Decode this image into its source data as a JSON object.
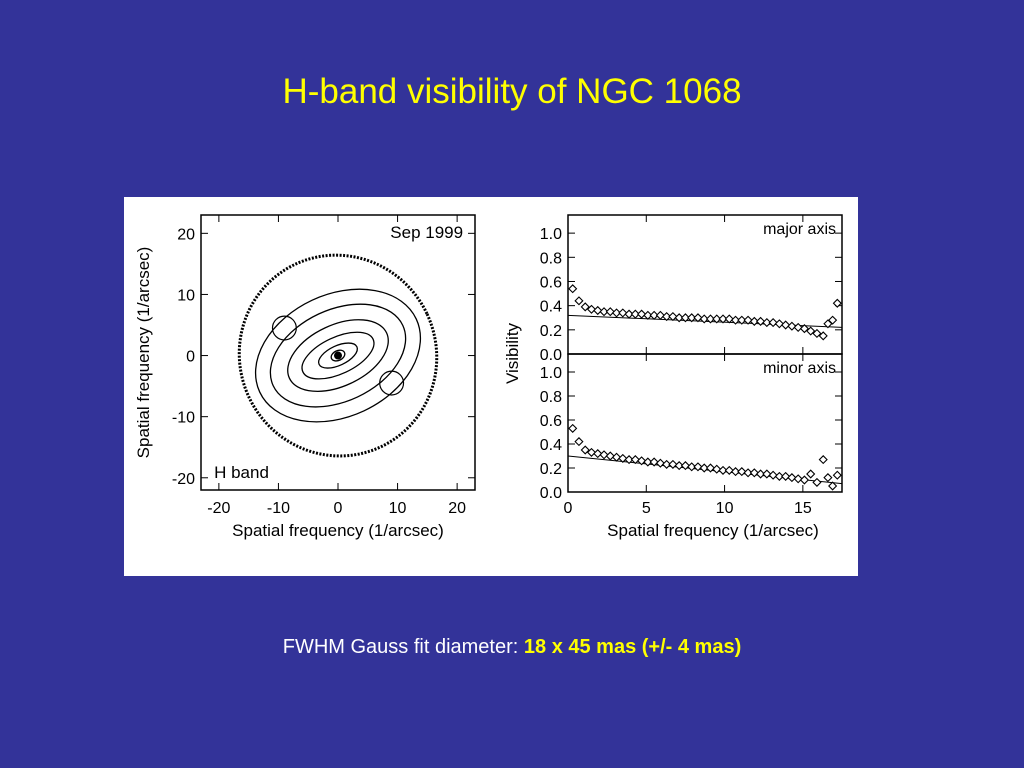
{
  "slide": {
    "title": "H-band visibility of NGC 1068",
    "caption_prefix": "FWHM Gauss fit diameter: ",
    "caption_value": "18 x 45 mas (+/- 4 mas)",
    "background_color": "#333399",
    "title_color": "#ffff00",
    "highlight_color": "#ffff00"
  },
  "chart_data": [
    {
      "type": "contour",
      "annotation_top": "Sep 1999",
      "annotation_bottom": "H band",
      "xlabel": "Spatial frequency (1/arcsec)",
      "ylabel": "Spatial frequency (1/arcsec)",
      "xlim": [
        -23,
        23
      ],
      "ylim": [
        -22,
        23
      ],
      "xticks": [
        "-20",
        "-10",
        "0",
        "10",
        "20"
      ],
      "yticks": [
        "20",
        "10",
        "0",
        "-10",
        "-20"
      ],
      "xtick_values": [
        -20,
        -10,
        0,
        10,
        20
      ],
      "ytick_values": [
        20,
        10,
        0,
        -10,
        -20
      ],
      "support_radius": 17,
      "contour_levels": [
        {
          "semi_major": 16.5,
          "semi_minor": 16.5
        },
        {
          "semi_major": 14.5,
          "semi_minor": 10.0
        },
        {
          "semi_major": 12.0,
          "semi_minor": 7.5
        },
        {
          "semi_major": 9.0,
          "semi_minor": 5.0
        },
        {
          "semi_major": 6.5,
          "semi_minor": 3.0
        },
        {
          "semi_major": 3.5,
          "semi_minor": 1.6
        },
        {
          "semi_major": 1.2,
          "semi_minor": 0.8
        }
      ],
      "position_angle_deg": -25,
      "side_islands": [
        {
          "u": -9,
          "v": 4.5,
          "r": 0.8
        },
        {
          "u": 9,
          "v": -4.5,
          "r": 0.8
        }
      ],
      "center_peak": {
        "u": 0,
        "v": 0
      }
    },
    {
      "type": "scatter+line",
      "ylabel": "Visibility",
      "panels": [
        {
          "label": "major axis",
          "xlim": [
            0,
            17.5
          ],
          "ylim": [
            0,
            1.15
          ],
          "yticks": [
            "0.0",
            "0.2",
            "0.4",
            "0.6",
            "0.8",
            "1.0"
          ],
          "ytick_values": [
            0,
            0.2,
            0.4,
            0.6,
            0.8,
            1.0
          ],
          "x": [
            0.3,
            0.7,
            1.1,
            1.5,
            1.9,
            2.3,
            2.7,
            3.1,
            3.5,
            3.9,
            4.3,
            4.7,
            5.1,
            5.5,
            5.9,
            6.3,
            6.7,
            7.1,
            7.5,
            7.9,
            8.3,
            8.7,
            9.1,
            9.5,
            9.9,
            10.3,
            10.7,
            11.1,
            11.5,
            11.9,
            12.3,
            12.7,
            13.1,
            13.5,
            13.9,
            14.3,
            14.7,
            15.1,
            15.5,
            15.9,
            16.3,
            16.6,
            16.9,
            17.2
          ],
          "y": [
            0.54,
            0.44,
            0.39,
            0.37,
            0.36,
            0.35,
            0.35,
            0.34,
            0.34,
            0.33,
            0.33,
            0.33,
            0.32,
            0.32,
            0.32,
            0.31,
            0.31,
            0.3,
            0.3,
            0.3,
            0.3,
            0.29,
            0.29,
            0.29,
            0.29,
            0.29,
            0.28,
            0.28,
            0.28,
            0.27,
            0.27,
            0.26,
            0.26,
            0.25,
            0.24,
            0.23,
            0.22,
            0.21,
            0.19,
            0.17,
            0.15,
            0.25,
            0.28,
            0.42
          ],
          "fit": {
            "x": [
              0,
              17.5
            ],
            "y": [
              0.32,
              0.22
            ]
          }
        },
        {
          "label": "minor axis",
          "xlim": [
            0,
            17.5
          ],
          "ylim": [
            0,
            1.15
          ],
          "yticks": [
            "0.0",
            "0.2",
            "0.4",
            "0.6",
            "0.8",
            "1.0"
          ],
          "ytick_values": [
            0,
            0.2,
            0.4,
            0.6,
            0.8,
            1.0
          ],
          "xticks": [
            "0",
            "5",
            "10",
            "15"
          ],
          "xtick_values": [
            0,
            5,
            10,
            15
          ],
          "xlabel": "Spatial frequency (1/arcsec)",
          "x": [
            0.3,
            0.7,
            1.1,
            1.5,
            1.9,
            2.3,
            2.7,
            3.1,
            3.5,
            3.9,
            4.3,
            4.7,
            5.1,
            5.5,
            5.9,
            6.3,
            6.7,
            7.1,
            7.5,
            7.9,
            8.3,
            8.7,
            9.1,
            9.5,
            9.9,
            10.3,
            10.7,
            11.1,
            11.5,
            11.9,
            12.3,
            12.7,
            13.1,
            13.5,
            13.9,
            14.3,
            14.7,
            15.1,
            15.5,
            15.9,
            16.3,
            16.6,
            16.9,
            17.2
          ],
          "y": [
            0.53,
            0.42,
            0.35,
            0.33,
            0.32,
            0.31,
            0.3,
            0.29,
            0.28,
            0.27,
            0.27,
            0.26,
            0.25,
            0.25,
            0.24,
            0.23,
            0.23,
            0.22,
            0.22,
            0.21,
            0.21,
            0.2,
            0.2,
            0.19,
            0.18,
            0.18,
            0.17,
            0.17,
            0.16,
            0.16,
            0.15,
            0.15,
            0.14,
            0.13,
            0.13,
            0.12,
            0.11,
            0.1,
            0.15,
            0.08,
            0.27,
            0.12,
            0.05,
            0.14
          ],
          "fit": {
            "x": [
              0,
              17.5
            ],
            "y": [
              0.3,
              0.07
            ]
          }
        }
      ]
    }
  ]
}
